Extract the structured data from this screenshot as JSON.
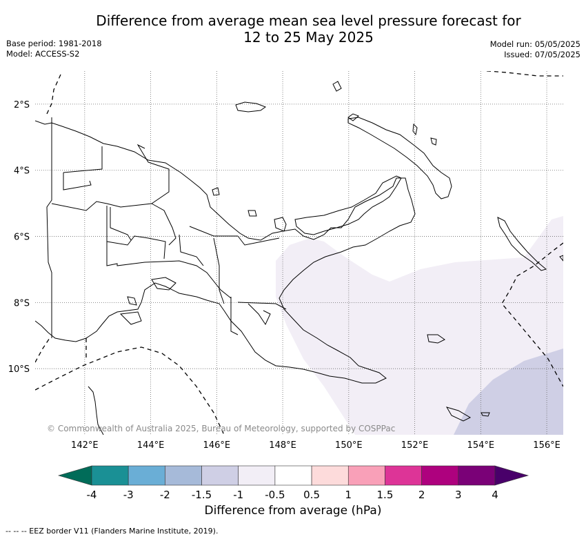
{
  "title": {
    "line1": "Difference from average mean sea level pressure forecast for",
    "line2": "12 to 25 May 2025"
  },
  "meta": {
    "base_period": "Base period: 1981-2018",
    "model": "Model: ACCESS-S2",
    "model_run": "Model run: 05/05/2025",
    "issued": "Issued: 07/05/2025"
  },
  "map": {
    "lon_range": [
      140.5,
      156.5
    ],
    "lat_range": [
      -12.0,
      -1.0
    ],
    "lon_ticks": [
      "142°E",
      "144°E",
      "146°E",
      "148°E",
      "150°E",
      "152°E",
      "154°E",
      "156°E"
    ],
    "lat_ticks": [
      "2°S",
      "4°S",
      "6°S",
      "8°S",
      "10°S"
    ],
    "anomaly_regions": [
      {
        "range": "-1 to -0.5",
        "color": "#f2eef6"
      },
      {
        "range": "-1.5 to -1",
        "color": "#cfcfe5"
      }
    ]
  },
  "copyright": "© Commonwealth of Australia 2025, Bureau of Meteorology, supported by COSPPac",
  "colorbar": {
    "label": "Difference from average (hPa)",
    "ticks": [
      "-4",
      "-3",
      "-2",
      "-1.5",
      "-1",
      "-0.5",
      "0.5",
      "1",
      "1.5",
      "2",
      "3",
      "4"
    ],
    "colors": [
      "#1a9095",
      "#6aaed6",
      "#a6bad9",
      "#cfcfe5",
      "#f2eef6",
      "#ffffff",
      "#fddbdb",
      "#f9a0b8",
      "#dd3497",
      "#ae017e",
      "#7a0177"
    ],
    "under_color": "#016c59",
    "over_color": "#49006a"
  },
  "footnote": "--  --  -- EEZ border V11 (Flanders Marine Institute, 2019)."
}
